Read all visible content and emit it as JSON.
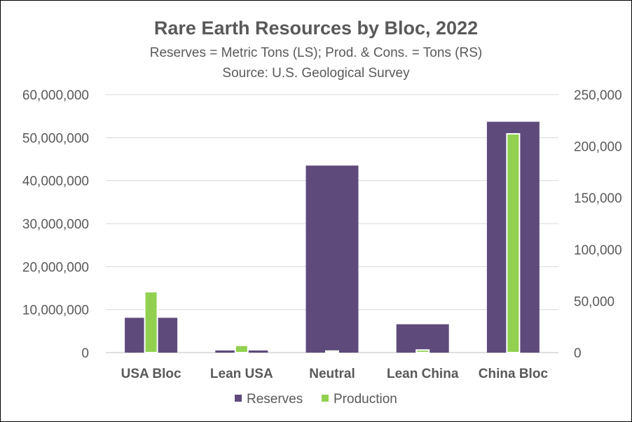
{
  "chart_data": {
    "type": "bar",
    "title": "Rare Earth Resources by Bloc, 2022",
    "subtitle": "Reserves = Metric Tons (LS); Prod. & Cons. = Tons (RS)",
    "source": "Source:  U.S. Geological Survey",
    "categories": [
      "USA Bloc",
      "Lean USA",
      "Neutral",
      "Lean China",
      "China Bloc"
    ],
    "series": [
      {
        "name": "Reserves",
        "axis": "left",
        "color": "#5E4B7C",
        "values": [
          8100000,
          500000,
          43500000,
          6600000,
          53700000
        ]
      },
      {
        "name": "Production",
        "axis": "right",
        "color": "#92D050",
        "values": [
          59000,
          7000,
          1500,
          2500,
          212000
        ]
      }
    ],
    "left_axis": {
      "ylim": [
        0,
        60000000
      ],
      "ticks": [
        "0",
        "10,000,000",
        "20,000,000",
        "30,000,000",
        "40,000,000",
        "50,000,000",
        "60,000,000"
      ]
    },
    "right_axis": {
      "ylim": [
        0,
        250000
      ],
      "ticks": [
        "0",
        "50,000",
        "100,000",
        "150,000",
        "200,000",
        "250,000"
      ]
    },
    "grid": true,
    "legend_position": "bottom"
  }
}
